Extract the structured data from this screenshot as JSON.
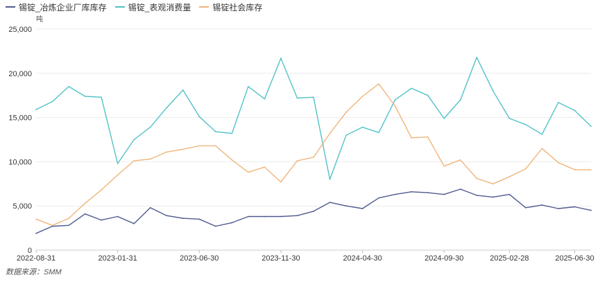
{
  "chart_data": {
    "type": "line",
    "unit": "吨",
    "source": "数据来源：SMM",
    "ylim": [
      0,
      25000
    ],
    "yticks": [
      0,
      5000,
      10000,
      15000,
      20000,
      25000
    ],
    "ytick_labels": [
      "0",
      "5,000",
      "10,000",
      "15,000",
      "20,000",
      "25,000"
    ],
    "xtick_labels": [
      "2022-08-31",
      "2023-01-31",
      "2023-06-30",
      "2023-11-30",
      "2024-04-30",
      "2024-09-30",
      "2025-02-28",
      "2025-06-30"
    ],
    "xtick_index": [
      0,
      5,
      10,
      15,
      20,
      25,
      29,
      33
    ],
    "x": [
      "2022-08-31",
      "2022-09-30",
      "2022-10-31",
      "2022-11-30",
      "2022-12-31",
      "2023-01-31",
      "2023-02-28",
      "2023-03-31",
      "2023-04-30",
      "2023-05-31",
      "2023-06-30",
      "2023-07-31",
      "2023-08-31",
      "2023-09-30",
      "2023-10-31",
      "2023-11-30",
      "2023-12-31",
      "2024-01-31",
      "2024-02-29",
      "2024-03-31",
      "2024-04-30",
      "2024-05-31",
      "2024-06-30",
      "2024-07-31",
      "2024-08-31",
      "2024-09-30",
      "2024-10-31",
      "2024-11-30",
      "2024-12-31",
      "2025-02-28",
      "2025-03-31",
      "2025-04-30",
      "2025-05-31",
      "2025-06-30",
      "2025-07-31"
    ],
    "series": [
      {
        "name": "锡锭_冶炼企业厂库库存",
        "color": "#4e5a8e",
        "values": [
          1900,
          2700,
          2800,
          4100,
          3400,
          3800,
          3000,
          4800,
          3900,
          3600,
          3500,
          2700,
          3100,
          3800,
          3800,
          3800,
          3900,
          4400,
          5400,
          5000,
          4700,
          5900,
          6300,
          6600,
          6500,
          6300,
          6900,
          6200,
          6000,
          6300,
          4800,
          5100,
          4700,
          4900,
          4500
        ]
      },
      {
        "name": "锡锭_表观消费量",
        "color": "#52c2c8",
        "values": [
          15900,
          16800,
          18500,
          17400,
          17300,
          9800,
          12500,
          13900,
          16100,
          18100,
          15100,
          13400,
          13200,
          18500,
          17100,
          21700,
          17200,
          17300,
          8000,
          13000,
          13900,
          13300,
          17000,
          18300,
          17500,
          14900,
          17000,
          21800,
          18000,
          14900,
          14200,
          13100,
          16700,
          15800,
          14000
        ]
      },
      {
        "name": "锡锭社会库存",
        "color": "#efb57b",
        "values": [
          3500,
          2800,
          3600,
          5300,
          6800,
          8500,
          10100,
          10300,
          11100,
          11400,
          11800,
          11800,
          10200,
          8800,
          9400,
          7700,
          10100,
          10500,
          13200,
          15600,
          17400,
          18800,
          16300,
          12700,
          12800,
          9500,
          10200,
          8100,
          7500,
          8300,
          9200,
          11500,
          9900,
          9100,
          9100
        ]
      }
    ]
  }
}
